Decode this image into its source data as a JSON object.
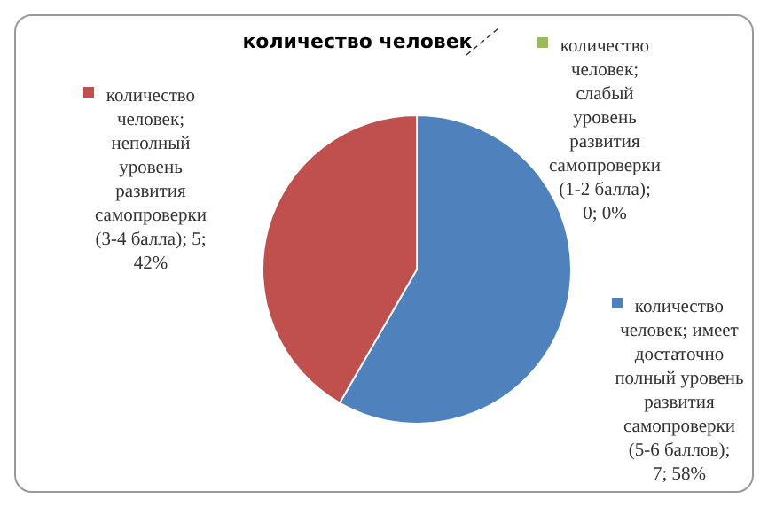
{
  "chart_data": {
    "type": "pie",
    "title": "количество человек",
    "categories": [
      "количество человек; слабый уровень развития самопроверки (1-2 балла)",
      "количество человек; имеет достаточно полный уровень развития самопроверки (5-6 баллов)",
      "количество человек; неполный уровень развития самопроверки (3-4 балла)"
    ],
    "values": [
      0,
      7,
      5
    ],
    "colors": [
      "#9bbb59",
      "#4f81bd",
      "#c0504d"
    ],
    "value_labels": [
      "; 0; 0%",
      "; 7; 58%",
      "; 5; 42%"
    ],
    "legend": "right"
  }
}
